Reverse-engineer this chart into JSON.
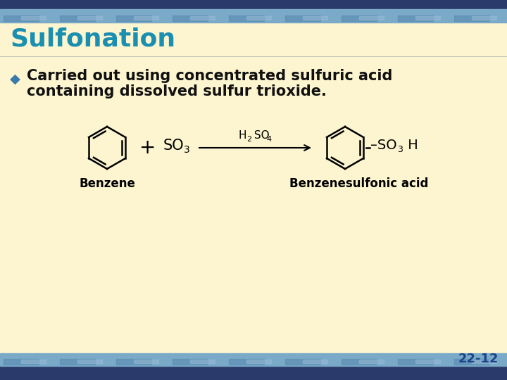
{
  "title": "Sulfonation",
  "title_color": "#1a8fb0",
  "title_fontsize": 26,
  "title_fontweight": "bold",
  "bg_color": "#fdf5d0",
  "header_top_band_color": "#3a5a8a",
  "header_mid_band_color": "#6aaaca",
  "bullet_text_line1": "Carried out using concentrated sulfuric acid",
  "bullet_text_line2": "containing dissolved sulfur trioxide.",
  "bullet_color": "#3a7aaa",
  "text_color": "#111111",
  "text_fontsize": 15,
  "page_number": "22-12",
  "page_number_color": "#1a4488",
  "page_number_fontsize": 13,
  "benzene_label": "Benzene",
  "product_label": "Benzenesulfonic acid",
  "label_fontsize": 12
}
